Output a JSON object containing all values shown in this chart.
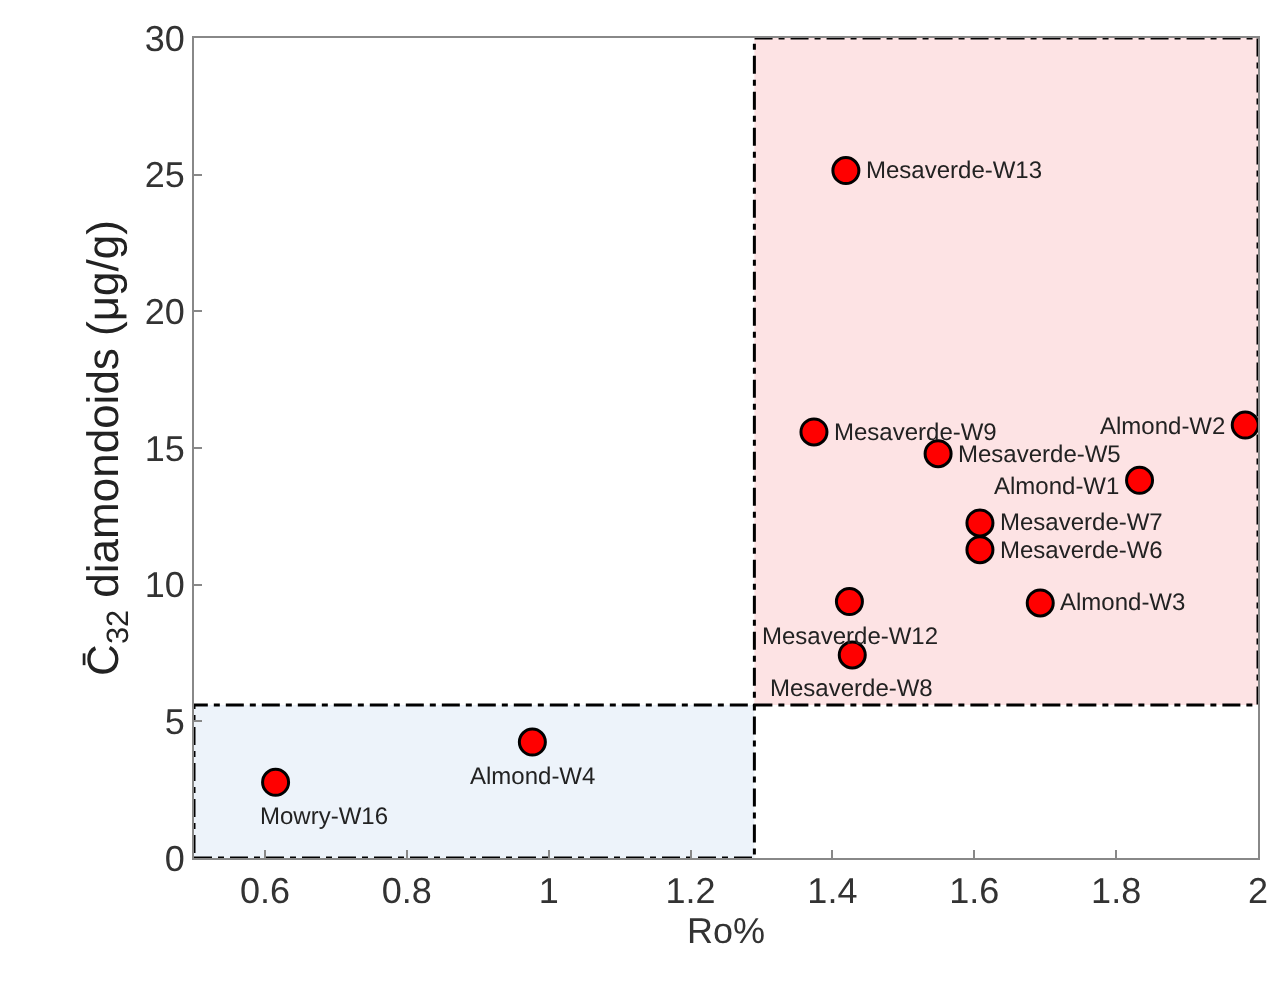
{
  "chart_data": {
    "type": "scatter",
    "xlabel": "Ro%",
    "ylabel": "C̄$_{32}$ diamondoids (μg/g)",
    "x": [
      0.615,
      0.977,
      1.419,
      1.374,
      1.549,
      1.982,
      1.833,
      1.608,
      1.608,
      1.424,
      1.693,
      1.428
    ],
    "values": [
      2.77,
      4.24,
      25.15,
      15.59,
      14.79,
      15.84,
      13.82,
      12.26,
      11.28,
      9.38,
      9.33,
      7.43
    ],
    "color": "#ff0000",
    "marker": "circle",
    "xlim": [
      0.5,
      2
    ],
    "xticks": [
      0.6,
      0.8,
      1,
      1.2,
      1.4,
      1.6,
      1.8,
      2
    ],
    "ylim": [
      0,
      30
    ],
    "yticks": [
      0,
      5,
      10,
      15,
      20,
      25,
      30
    ],
    "grid": false,
    "legend": false,
    "bands": [
      {
        "axis": "y",
        "from": 0,
        "to": 5.6,
        "color": "#edf3fa"
      },
      {
        "axis": "x",
        "from": 1.29,
        "to": 2,
        "color": "#fde3e4"
      }
    ],
    "annotations": [
      {
        "text": "Mowry-W16",
        "x": 0.615,
        "y": 2.77
      },
      {
        "text": "Almond-W4",
        "x": 0.977,
        "y": 4.24
      },
      {
        "text": "Mesaverde-W13",
        "x": 1.419,
        "y": 25.15
      },
      {
        "text": "Mesaverde-W9",
        "x": 1.374,
        "y": 15.59
      },
      {
        "text": "Mesaverde-W5",
        "x": 1.549,
        "y": 14.79
      },
      {
        "text": "Almond-W2",
        "x": 1.982,
        "y": 15.84
      },
      {
        "text": "Almond-W1",
        "x": 1.833,
        "y": 13.82
      },
      {
        "text": "Mesaverde-W7",
        "x": 1.608,
        "y": 12.26
      },
      {
        "text": "Mesaverde-W6",
        "x": 1.608,
        "y": 11.28
      },
      {
        "text": "Mesaverde-W12",
        "x": 1.424,
        "y": 9.38
      },
      {
        "text": "Almond-W3",
        "x": 1.693,
        "y": 9.33
      },
      {
        "text": "Mesaverde-W8",
        "x": 1.428,
        "y": 7.43
      }
    ]
  }
}
